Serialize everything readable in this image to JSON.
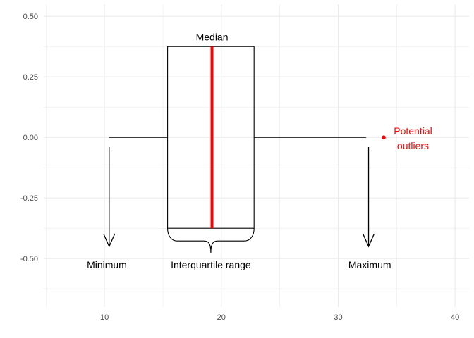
{
  "chart_data": {
    "type": "boxplot",
    "orientation": "horizontal",
    "title": "",
    "xlabel": "",
    "ylabel": "",
    "xlim": [
      4.8,
      41.2
    ],
    "ylim": [
      -0.7,
      0.55
    ],
    "x_ticks": [
      10,
      20,
      30,
      40
    ],
    "x_tick_labels": [
      "10",
      "20",
      "30",
      "40"
    ],
    "y_ticks": [
      0.5,
      0.25,
      0.0,
      -0.25,
      -0.5
    ],
    "y_tick_labels": [
      "0.50",
      "0.25",
      "0.00",
      "-0.25",
      "-0.50"
    ],
    "x_minor_ticks": [
      5,
      15,
      25,
      35
    ],
    "y_minor_ticks": [
      0.375,
      0.125,
      -0.125,
      -0.375,
      -0.625
    ],
    "grid": true,
    "box": {
      "y": 0,
      "min": 10.4,
      "q1": 15.4,
      "median": 19.2,
      "q3": 22.8,
      "max": 32.4,
      "y_top": 0.375,
      "y_bottom": -0.375,
      "box_color": "#000000",
      "median_color": "#ff0000"
    },
    "outliers": [
      {
        "x": 33.9,
        "y": 0.0,
        "color": "#ff0000"
      }
    ],
    "annotations": {
      "median": {
        "text": "Median",
        "x": 19.2,
        "y": 0.415
      },
      "iqr": {
        "text": "Interquartile range",
        "x": 19.1,
        "y": -0.525,
        "brace_from": 15.4,
        "brace_to": 22.8,
        "brace_y": -0.375
      },
      "minimum": {
        "text": "Minimum",
        "x": 10.2,
        "y": -0.525,
        "arrow_x": 10.4,
        "arrow_from": -0.04,
        "arrow_to": -0.45
      },
      "maximum": {
        "text": "Maximum",
        "x": 32.7,
        "y": -0.525,
        "arrow_x": 32.6,
        "arrow_from": -0.04,
        "arrow_to": -0.45
      },
      "outliers": {
        "line1": "Potential",
        "line2": "outliers",
        "x": 36.4,
        "y": 0.0,
        "color": "#ff0000"
      }
    },
    "colors": {
      "grid": "#ebebeb",
      "text": "#000000",
      "tick": "#4d4d4d"
    }
  }
}
